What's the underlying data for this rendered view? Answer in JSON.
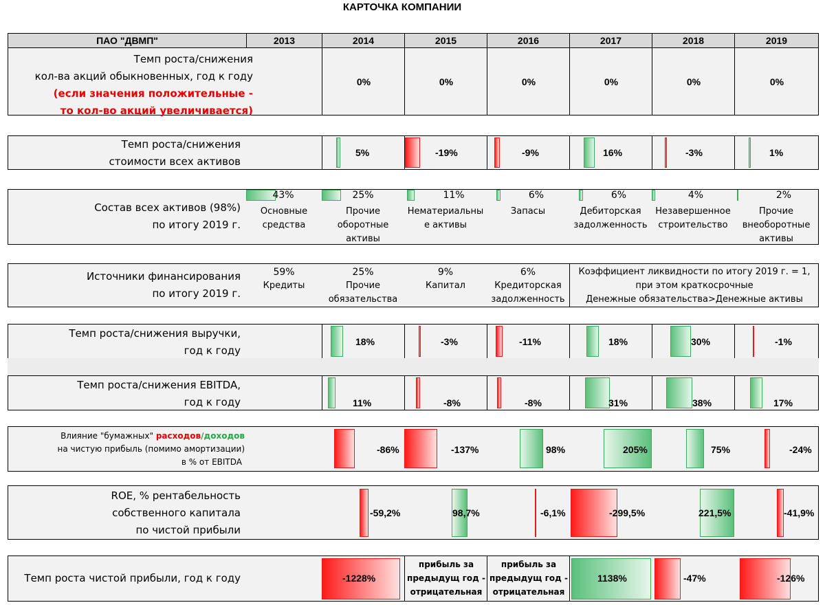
{
  "title": "КАРТОЧКА КОМПАНИИ",
  "header": {
    "company": "ПАО \"ДВМП\"",
    "years": [
      "2013",
      "2014",
      "2015",
      "2016",
      "2017",
      "2018",
      "2019"
    ]
  },
  "shares": {
    "line1": "Темп роста/снижения",
    "line2": "кол-ва акций обыкновенных,  год к году",
    "line3": "(если значения положительные -",
    "line4": "то кол-во акций увеличивается)",
    "values": [
      "0%",
      "0%",
      "0%",
      "0%",
      "0%",
      "0%"
    ]
  },
  "assets_growth": {
    "line1": "Темп роста/снижения",
    "line2": "стоимости всех активов",
    "values": [
      "5%",
      "-19%",
      "-9%",
      "16%",
      "-3%",
      "1%"
    ],
    "numbers": [
      5,
      -19,
      -9,
      16,
      -3,
      1
    ]
  },
  "asset_structure": {
    "line1": "Состав всех активов (98%)",
    "line2": "по итогу 2019 г.",
    "items": [
      {
        "pct": "43%",
        "value": 43,
        "l1": "Основные",
        "l2": "средства",
        "l3": ""
      },
      {
        "pct": "25%",
        "value": 25,
        "l1": "Прочие",
        "l2": "оборотные",
        "l3": "активы"
      },
      {
        "pct": "11%",
        "value": 11,
        "l1": "Нематериальны",
        "l2": "е активы",
        "l3": ""
      },
      {
        "pct": "6%",
        "value": 6,
        "l1": "Запасы",
        "l2": "",
        "l3": ""
      },
      {
        "pct": "6%",
        "value": 6,
        "l1": "Дебиторская",
        "l2": "задолженность",
        "l3": ""
      },
      {
        "pct": "4%",
        "value": 4,
        "l1": "Незавершенное",
        "l2": "строительство",
        "l3": ""
      },
      {
        "pct": "2%",
        "value": 2,
        "l1": "Прочие",
        "l2": "внеоборотные",
        "l3": "активы"
      }
    ]
  },
  "financing": {
    "line1": "Источники финансирования",
    "line2": "по итогу 2019 г.",
    "items": [
      {
        "pct": "59%",
        "l1": "Кредиты",
        "l2": ""
      },
      {
        "pct": "25%",
        "l1": "Прочие",
        "l2": "обязательства"
      },
      {
        "pct": "9%",
        "l1": "Капитал",
        "l2": ""
      },
      {
        "pct": "6%",
        "l1": "Кредиторская",
        "l2": "задолженность"
      }
    ],
    "note1": "Коэффициент ликвидности по итогу 2019 г. = 1,",
    "note2": "при этом краткосрочные",
    "note3": "Денежные обязательства>Денежные активы"
  },
  "revenue": {
    "line1": "Темп роста/снижения выручки,",
    "line2": "год к году",
    "values": [
      "18%",
      "-3%",
      "-11%",
      "18%",
      "30%",
      "-1%"
    ],
    "numbers": [
      18,
      -3,
      -11,
      18,
      30,
      -1
    ]
  },
  "ebitda": {
    "line1": "Темп роста/снижения EBITDA,",
    "line2": "год к году",
    "values": [
      "11%",
      "-8%",
      "-8%",
      "31%",
      "38%",
      "17%"
    ],
    "numbers": [
      11,
      -8,
      -8,
      31,
      38,
      17
    ]
  },
  "paper": {
    "line1a": "Влияние \"бумажных\" ",
    "line1b": "расходов",
    "line1c": "/",
    "line1d": "доходов",
    "line2": "на чистую прибыль (помимо амортизации)",
    "line3": "в % от EBITDA",
    "values": [
      "-86%",
      "-137%",
      "98%",
      "205%",
      "75%",
      "-24%"
    ],
    "numbers": [
      -86,
      -137,
      98,
      205,
      75,
      -24
    ]
  },
  "roe": {
    "line1": "ROE, % рентабельность",
    "line2": "собственного капитала",
    "line3": "по чистой прибыли",
    "values": [
      "-59,2%",
      "98,7%",
      "-6,1%",
      "-299,5%",
      "221,5%",
      "-41,9%"
    ],
    "numbers": [
      -59.2,
      98.7,
      -6.1,
      -299.5,
      221.5,
      -41.9
    ]
  },
  "net_profit": {
    "label": "Темп роста чистой прибыли, год к году",
    "v2014": "-1228%",
    "note_a1": "прибыль за",
    "note_a2": "предыдущ год -",
    "note_a3": "отрицательная",
    "note_b1": "прибыль за",
    "note_b2": "предыдущ год -",
    "note_b3": "отрицательная",
    "v2017": "1138%",
    "v2018": "-47%",
    "v2019": "-126%"
  },
  "colors": {
    "green": "#5bc07c",
    "red": "#ff1a1a",
    "header": "#d9d9d9",
    "panel": "#f2f2f2"
  }
}
